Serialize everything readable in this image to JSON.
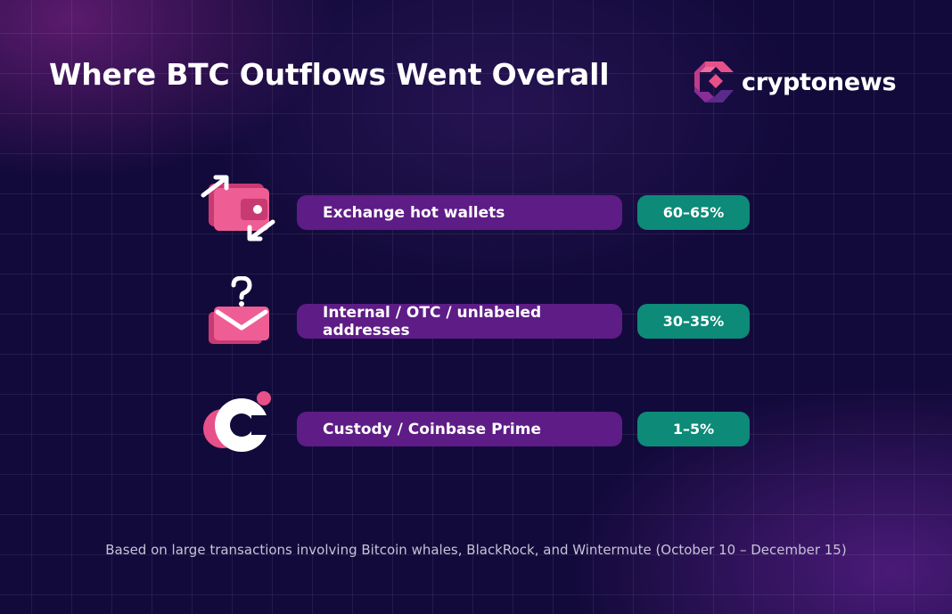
{
  "header": {
    "title": "Where BTC Outflows Went Overall",
    "logo_text": "cryptonews"
  },
  "rows": [
    {
      "label": "Exchange hot wallets",
      "value": "60–65%",
      "icon": "wallet-transfer-icon"
    },
    {
      "label": "Internal / OTC / unlabeled addresses",
      "value": "30–35%",
      "icon": "unknown-mail-icon"
    },
    {
      "label": "Custody / Coinbase Prime",
      "value": "1–5%",
      "icon": "coinbase-c-icon"
    }
  ],
  "footnote": "Based on large transactions involving Bitcoin whales, BlackRock, and Wintermute (October 10 – December 15)",
  "colors": {
    "background": "#120a3a",
    "label_pill": "#5e1c86",
    "value_pill": "#0d8a78",
    "accent_pink": "#e8508a"
  }
}
